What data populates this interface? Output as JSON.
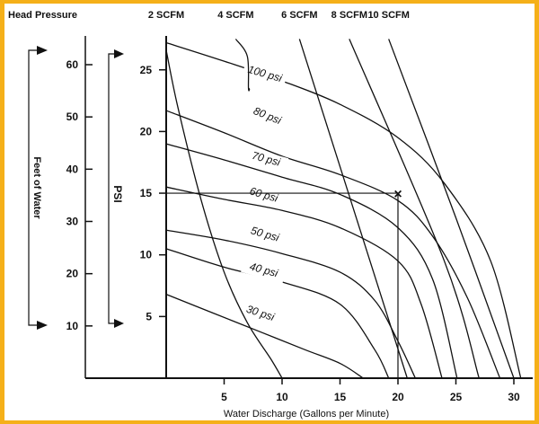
{
  "border_color": "#F5B019",
  "chart_data": {
    "type": "line",
    "title": "",
    "header_left": "Head Pressure",
    "xlabel": "Water Discharge (Gallons per Minute)",
    "xlim": [
      0,
      32
    ],
    "x_ticks": [
      5,
      10,
      15,
      20,
      25,
      30
    ],
    "psi_axis": {
      "label": "PSI",
      "ylim": [
        0,
        27.5
      ],
      "ticks": [
        5,
        10,
        15,
        20,
        25
      ]
    },
    "feet_axis": {
      "label": "Feet of Water",
      "ylim": [
        0,
        63.5
      ],
      "ticks": [
        10,
        20,
        30,
        40,
        50,
        60
      ]
    },
    "pressure_curves": [
      {
        "label": "100 psi",
        "label_at": [
          8.5,
          24.4
        ],
        "label_angle": 16,
        "points": [
          [
            0,
            27.2
          ],
          [
            5,
            25.7
          ],
          [
            10,
            24.1
          ],
          [
            15,
            22.2
          ],
          [
            20,
            19.5
          ],
          [
            24,
            15.8
          ],
          [
            28,
            9.5
          ],
          [
            30.6,
            0
          ]
        ]
      },
      {
        "label": "80 psi",
        "label_at": [
          8.7,
          21.0
        ],
        "label_angle": 22,
        "points": [
          [
            0,
            21.7
          ],
          [
            5,
            19.9
          ],
          [
            10,
            18.0
          ],
          [
            15,
            16.5
          ],
          [
            20,
            14.4
          ],
          [
            23,
            11.5
          ],
          [
            26,
            6.5
          ],
          [
            28.8,
            0
          ]
        ]
      },
      {
        "label": "70 psi",
        "label_at": [
          8.6,
          17.5
        ],
        "label_angle": 15,
        "points": [
          [
            0,
            19.0
          ],
          [
            5,
            17.7
          ],
          [
            10,
            16.3
          ],
          [
            15,
            14.9
          ],
          [
            20,
            12.2
          ],
          [
            23,
            8.0
          ],
          [
            25.1,
            0
          ]
        ]
      },
      {
        "label": "60 psi",
        "label_at": [
          8.4,
          14.6
        ],
        "label_angle": 16,
        "points": [
          [
            0,
            15.5
          ],
          [
            5,
            14.5
          ],
          [
            10,
            13.6
          ],
          [
            15,
            12.2
          ],
          [
            20,
            9.5
          ],
          [
            22,
            6.0
          ],
          [
            23.8,
            0
          ]
        ]
      },
      {
        "label": "50 psi",
        "label_at": [
          8.5,
          11.4
        ],
        "label_angle": 16,
        "points": [
          [
            0,
            12.0
          ],
          [
            5,
            11.2
          ],
          [
            10,
            10.1
          ],
          [
            15,
            8.6
          ],
          [
            18,
            6.3
          ],
          [
            20,
            3.0
          ],
          [
            21.5,
            0
          ]
        ]
      },
      {
        "label": "40 psi",
        "label_at": [
          8.4,
          8.5
        ],
        "label_angle": 15,
        "points": [
          [
            0,
            10.5
          ],
          [
            5,
            9.0
          ],
          [
            10,
            7.8
          ],
          [
            15,
            6.0
          ],
          [
            18,
            2.3
          ],
          [
            19.2,
            0
          ]
        ]
      },
      {
        "label": "30 psi",
        "label_at": [
          8.1,
          5.0
        ],
        "label_angle": 18,
        "points": [
          [
            0,
            6.8
          ],
          [
            4,
            5.3
          ],
          [
            8,
            3.8
          ],
          [
            12,
            2.3
          ],
          [
            15,
            1.2
          ],
          [
            17,
            0
          ]
        ]
      }
    ],
    "scfm_curves": [
      {
        "label": "2 SCFM",
        "points": [
          [
            0,
            26.6
          ],
          [
            1,
            22.0
          ],
          [
            3,
            14.5
          ],
          [
            5,
            8.6
          ],
          [
            7,
            4.5
          ],
          [
            9,
            1.6
          ],
          [
            10,
            0
          ]
        ]
      },
      {
        "label": "4 SCFM",
        "points": [
          [
            6,
            27.5
          ],
          [
            7,
            26.1
          ],
          [
            7.1,
            23.5
          ],
          [
            7.2,
            23.5
          ]
        ]
      },
      {
        "label": "6 SCFM",
        "points": [
          [
            11.5,
            27.5
          ],
          [
            20.8,
            0
          ]
        ]
      },
      {
        "label": "8 SCFM",
        "points": [
          [
            15.8,
            27.5
          ],
          [
            24,
            9.5
          ],
          [
            27,
            0
          ]
        ]
      },
      {
        "label": "10 SCFM",
        "points": [
          [
            19.2,
            27.5
          ],
          [
            25,
            13.0
          ],
          [
            30,
            0
          ]
        ]
      }
    ],
    "operating_point": {
      "x": 20,
      "y": 15,
      "marker": "×"
    }
  }
}
